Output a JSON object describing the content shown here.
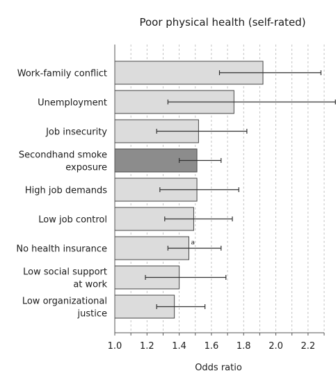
{
  "chart_data": {
    "type": "bar",
    "orientation": "horizontal",
    "title": "Poor physical health (self-rated)",
    "xlabel": "Odds ratio",
    "ylabel": "",
    "xlim": [
      1.0,
      2.3
    ],
    "x_ticks": [
      1.0,
      1.2,
      1.4,
      1.6,
      1.8,
      2.0,
      2.2
    ],
    "x_tick_labels": [
      "1.0",
      "1.2",
      "1.4",
      "1.6",
      "1.8",
      "2.0",
      "2.2"
    ],
    "grid": "vertical dashed",
    "categories": [
      [
        "Work-family conflict"
      ],
      [
        "Unemployment"
      ],
      [
        "Job insecurity"
      ],
      [
        "Secondhand smoke",
        "exposure"
      ],
      [
        "High job demands"
      ],
      [
        "Low job control"
      ],
      [
        "No health insurance"
      ],
      [
        "Low social support",
        "at work"
      ],
      [
        "Low organizational",
        "justice"
      ]
    ],
    "values": [
      1.92,
      1.74,
      1.52,
      1.51,
      1.51,
      1.49,
      1.46,
      1.4,
      1.37
    ],
    "ci_lower": [
      1.65,
      1.33,
      1.26,
      1.4,
      1.28,
      1.31,
      1.33,
      1.19,
      1.26
    ],
    "ci_upper": [
      2.28,
      2.37,
      1.82,
      1.66,
      1.77,
      1.73,
      1.66,
      1.69,
      1.56
    ],
    "highlight_index": 3,
    "annotations": [
      {
        "category_index": 6,
        "text": "a"
      }
    ],
    "colors": {
      "bar_fill": "#dcdcdc",
      "bar_highlight": "#8c8c8c",
      "bar_stroke": "#444444",
      "error_bar": "#333333",
      "grid": "#b5b5b5",
      "axis": "#555555",
      "text": "#1a1a1a"
    }
  }
}
